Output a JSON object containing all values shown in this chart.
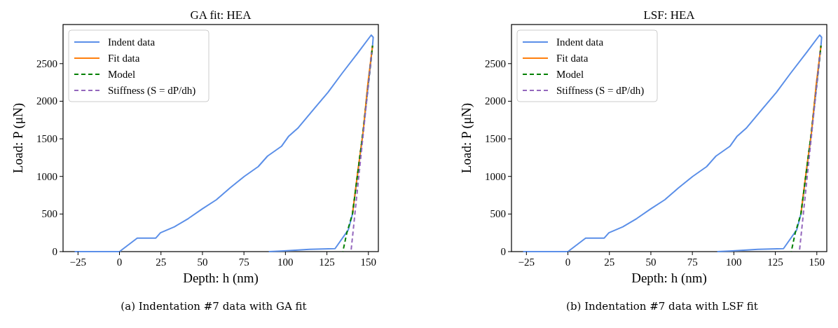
{
  "chart_data": [
    {
      "type": "line",
      "title": "GA fit: HEA",
      "xlabel": "Depth: h (nm)",
      "ylabel": "Load: P (μN)",
      "annotations": [
        "(a) Indentation #7 data with GA fit"
      ],
      "xlim": [
        -34,
        156
      ],
      "ylim": [
        0,
        3020
      ],
      "xticks": [
        -25,
        0,
        25,
        50,
        75,
        100,
        125,
        150
      ],
      "yticks": [
        0,
        500,
        1000,
        1500,
        2000,
        2500
      ],
      "legend": "top left",
      "grid": false,
      "series": [
        {
          "name": "Indent data",
          "color": "#5b8fe8",
          "line_style": "solid",
          "x": [
            -27,
            0,
            10.7,
            21.9,
            24.7,
            33.1,
            41.5,
            50,
            58.4,
            66.8,
            75.2,
            83.6,
            89.2,
            97.6,
            101.8,
            107.4,
            117.3,
            125.7,
            134.1,
            143.9,
            151.7,
            152.9,
            152.5,
            146.8,
            140.4,
            137.9,
            129.9,
            114.5,
            99,
            90
          ],
          "values": [
            0,
            0,
            180,
            180,
            250,
            330,
            440,
            570,
            690,
            850,
            1000,
            1130,
            1270,
            1400,
            1530,
            1640,
            1900,
            2120,
            2370,
            2650,
            2880,
            2850,
            2740,
            1590,
            500,
            290,
            40,
            30,
            10,
            0
          ]
        },
        {
          "name": "Fit data",
          "color": "#ff7f0e",
          "line_style": "solid",
          "x": [
            152.5,
            149.5,
            146.8,
            143.5,
            140.4
          ],
          "values": [
            2740,
            2200,
            1590,
            1050,
            500
          ]
        },
        {
          "name": "Model",
          "color": "#008000",
          "line_style": "dashed",
          "x": [
            134.6,
            137,
            140.4,
            146.8,
            152.5
          ],
          "values": [
            0,
            250,
            500,
            1600,
            2740
          ]
        },
        {
          "name": "Stiffness (S = dP/dh)",
          "color": "#9467bd",
          "line_style": "dashed",
          "x": [
            139.5,
            152
          ],
          "values": [
            0,
            2650
          ]
        }
      ]
    },
    {
      "type": "line",
      "title": "LSF: HEA",
      "xlabel": "Depth: h (nm)",
      "ylabel": "Load: P (μN)",
      "annotations": [
        "(b) Indentation #7 data with LSF fit"
      ],
      "xlim": [
        -34,
        156
      ],
      "ylim": [
        0,
        3020
      ],
      "xticks": [
        -25,
        0,
        25,
        50,
        75,
        100,
        125,
        150
      ],
      "yticks": [
        0,
        500,
        1000,
        1500,
        2000,
        2500
      ],
      "legend": "top left",
      "grid": false,
      "series": [
        {
          "name": "Indent data",
          "color": "#5b8fe8",
          "line_style": "solid",
          "x": [
            -27,
            0,
            10.7,
            21.9,
            24.7,
            33.1,
            41.5,
            50,
            58.4,
            66.8,
            75.2,
            83.6,
            89.2,
            97.6,
            101.8,
            107.4,
            117.3,
            125.7,
            134.1,
            143.9,
            151.7,
            152.9,
            152.5,
            146.8,
            140.4,
            137.9,
            129.9,
            114.5,
            99,
            90
          ],
          "values": [
            0,
            0,
            180,
            180,
            250,
            330,
            440,
            570,
            690,
            850,
            1000,
            1130,
            1270,
            1400,
            1530,
            1640,
            1900,
            2120,
            2370,
            2650,
            2880,
            2850,
            2740,
            1590,
            500,
            290,
            40,
            30,
            10,
            0
          ]
        },
        {
          "name": "Fit data",
          "color": "#ff7f0e",
          "line_style": "solid",
          "x": [
            152.5,
            149.5,
            146.8,
            143.5,
            140.4
          ],
          "values": [
            2740,
            2200,
            1590,
            1050,
            500
          ]
        },
        {
          "name": "Model",
          "color": "#008000",
          "line_style": "dashed",
          "x": [
            134.6,
            137,
            140.4,
            146.8,
            152.5
          ],
          "values": [
            0,
            250,
            500,
            1600,
            2740
          ]
        },
        {
          "name": "Stiffness (S = dP/dh)",
          "color": "#9467bd",
          "line_style": "dashed",
          "x": [
            139.5,
            152
          ],
          "values": [
            0,
            2650
          ]
        }
      ]
    }
  ]
}
